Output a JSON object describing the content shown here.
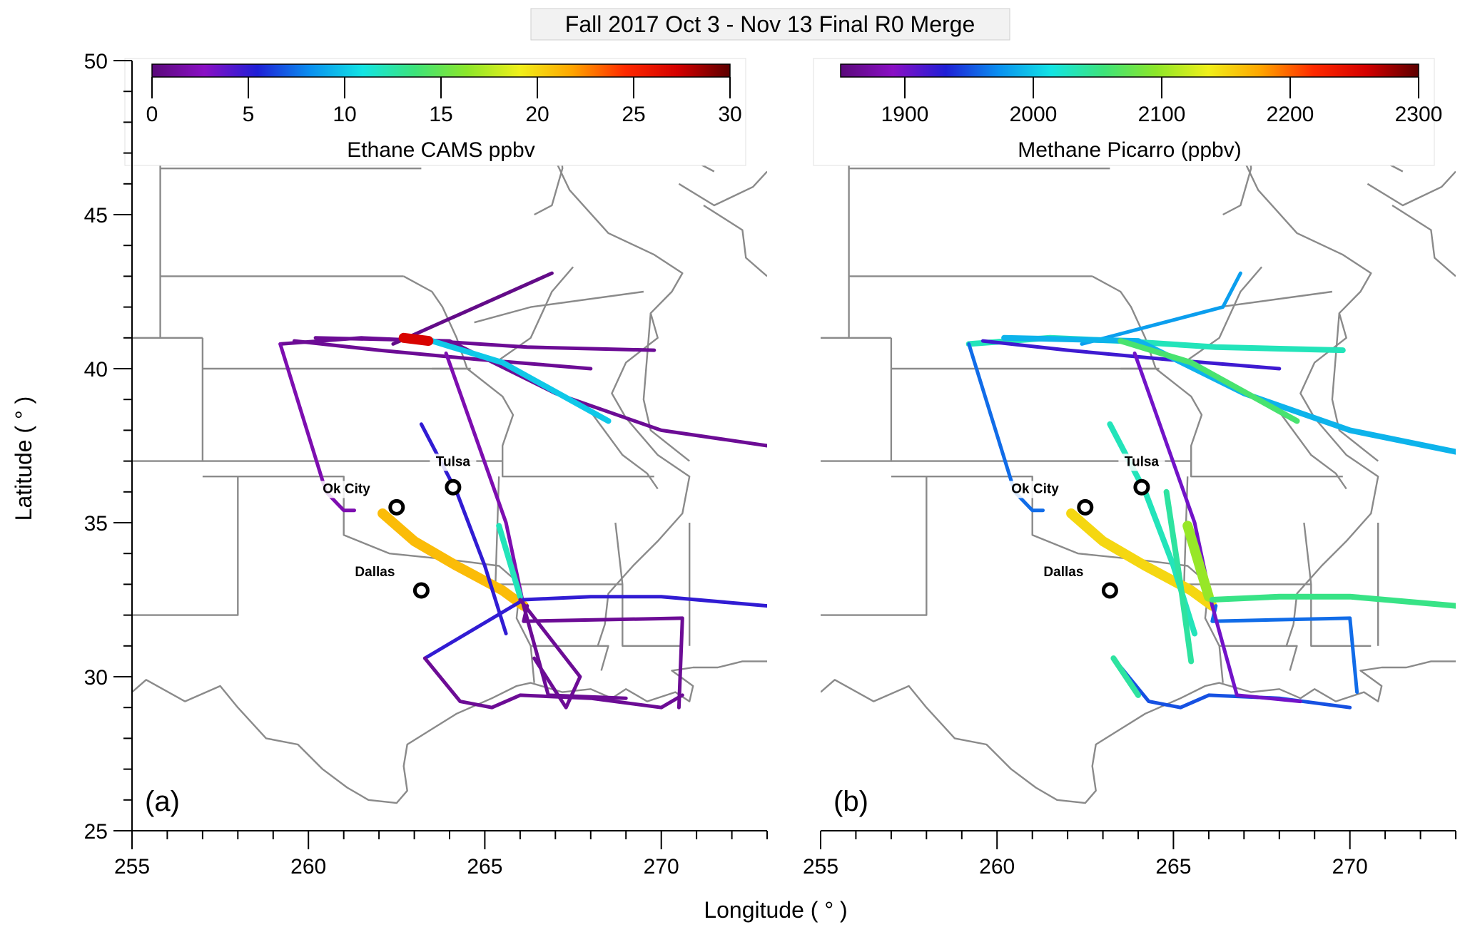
{
  "figure": {
    "title": "Fall 2017 Oct 3 - Nov 13 Final R0 Merge",
    "xlabel": "Longitude ( ° )",
    "ylabel": "Latitude ( ° )"
  },
  "axes": {
    "lon_range": [
      255,
      273
    ],
    "lat_range": [
      25,
      50
    ],
    "x_ticks": [
      255,
      260,
      265,
      270
    ],
    "y_ticks": [
      25,
      30,
      35,
      40,
      45,
      50
    ]
  },
  "panels": [
    {
      "id": "a",
      "label": "(a)",
      "colorbar": {
        "title": "Ethane CAMS ppbv",
        "min": 0,
        "max": 30,
        "ticks": [
          "0",
          "5",
          "10",
          "15",
          "20",
          "25",
          "30"
        ]
      }
    },
    {
      "id": "b",
      "label": "(b)",
      "colorbar": {
        "title": "Methane Picarro (ppbv)",
        "min": 1850,
        "max": 2300,
        "ticks": [
          "1900",
          "2000",
          "2100",
          "2200",
          "2300"
        ]
      }
    }
  ],
  "cities": [
    {
      "name": "Tulsa",
      "lon": 264.1,
      "lat": 36.15
    },
    {
      "name": "Ok City",
      "lon": 262.5,
      "lat": 35.5
    },
    {
      "name": "Dallas",
      "lon": 263.2,
      "lat": 32.8
    }
  ],
  "colormap": [
    "#5a0a7a",
    "#8a0fc4",
    "#1f1fd6",
    "#0a8ff0",
    "#12e4e4",
    "#3de37a",
    "#8ce62a",
    "#f0f01a",
    "#ffa500",
    "#ff2a00",
    "#d40000",
    "#5c0000"
  ],
  "flight_tracks": {
    "a": [
      {
        "points": [
          [
            259.2,
            40.8
          ],
          [
            261.5,
            41.0
          ],
          [
            263.5,
            40.9
          ],
          [
            266.2,
            40.7
          ],
          [
            269.8,
            40.6
          ]
        ],
        "value": 1
      },
      {
        "points": [
          [
            259.2,
            40.8
          ],
          [
            260.5,
            36.0
          ],
          [
            261.0,
            35.4
          ],
          [
            261.3,
            35.4
          ]
        ],
        "value": 2
      },
      {
        "points": [
          [
            259.6,
            40.9
          ],
          [
            262.0,
            40.6
          ],
          [
            264.8,
            40.3
          ],
          [
            268.0,
            40.0
          ]
        ],
        "value": 1
      },
      {
        "points": [
          [
            262.4,
            40.8
          ],
          [
            266.9,
            43.1
          ]
        ],
        "value": 0.5
      },
      {
        "points": [
          [
            260.2,
            41.0
          ],
          [
            264.0,
            40.9
          ],
          [
            267.0,
            39.2
          ],
          [
            270.0,
            38.0
          ],
          [
            273.0,
            37.5
          ]
        ],
        "value": 1
      },
      {
        "points": [
          [
            263.5,
            40.9
          ],
          [
            265.5,
            40.2
          ],
          [
            268.5,
            38.3
          ]
        ],
        "value": 10
      },
      {
        "points": [
          [
            262.7,
            41.0
          ],
          [
            263.4,
            40.9
          ]
        ],
        "value": 27
      },
      {
        "points": [
          [
            262.1,
            35.3
          ],
          [
            263.0,
            34.4
          ],
          [
            264.2,
            33.6
          ],
          [
            265.5,
            32.8
          ],
          [
            266.1,
            32.3
          ]
        ],
        "value": 21
      },
      {
        "points": [
          [
            263.2,
            38.2
          ],
          [
            264.2,
            36.0
          ],
          [
            265.0,
            33.6
          ],
          [
            265.6,
            31.4
          ]
        ],
        "value": 5
      },
      {
        "points": [
          [
            263.9,
            40.5
          ],
          [
            265.6,
            35.0
          ],
          [
            266.1,
            32.3
          ]
        ],
        "value": 2
      },
      {
        "points": [
          [
            265.4,
            34.9
          ],
          [
            266.0,
            32.6
          ]
        ],
        "value": 12
      },
      {
        "points": [
          [
            263.3,
            30.6
          ],
          [
            266.1,
            32.5
          ],
          [
            268.0,
            32.6
          ],
          [
            270.0,
            32.6
          ],
          [
            273.0,
            32.3
          ]
        ],
        "value": 5
      },
      {
        "points": [
          [
            263.3,
            30.6
          ],
          [
            264.3,
            29.2
          ],
          [
            265.2,
            29.0
          ],
          [
            266.0,
            29.4
          ],
          [
            268.0,
            29.3
          ],
          [
            270.0,
            29.0
          ],
          [
            270.6,
            29.4
          ]
        ],
        "value": 1
      },
      {
        "points": [
          [
            266.2,
            32.3
          ],
          [
            266.1,
            31.8
          ],
          [
            270.6,
            31.9
          ],
          [
            270.5,
            29.0
          ]
        ],
        "value": 1
      },
      {
        "points": [
          [
            266.1,
            32.3
          ],
          [
            266.8,
            29.4
          ],
          [
            269.0,
            29.3
          ]
        ],
        "value": 1
      },
      {
        "points": [
          [
            266.0,
            32.5
          ],
          [
            267.7,
            30.0
          ],
          [
            267.3,
            29.0
          ],
          [
            266.4,
            30.6
          ]
        ],
        "value": 1
      }
    ],
    "b": [
      {
        "points": [
          [
            259.2,
            40.8
          ],
          [
            261.5,
            41.0
          ],
          [
            263.5,
            40.9
          ],
          [
            266.2,
            40.7
          ],
          [
            269.8,
            40.6
          ]
        ],
        "value": 2030
      },
      {
        "points": [
          [
            259.2,
            40.8
          ],
          [
            260.5,
            36.0
          ],
          [
            261.0,
            35.4
          ],
          [
            261.3,
            35.4
          ]
        ],
        "value": 1960
      },
      {
        "points": [
          [
            259.6,
            40.9
          ],
          [
            262.0,
            40.6
          ],
          [
            264.8,
            40.3
          ],
          [
            268.0,
            40.0
          ]
        ],
        "value": 1920
      },
      {
        "points": [
          [
            262.4,
            40.8
          ],
          [
            266.4,
            42.0
          ],
          [
            266.9,
            43.1
          ]
        ],
        "value": 1980
      },
      {
        "points": [
          [
            260.2,
            41.0
          ],
          [
            264.0,
            40.9
          ],
          [
            267.0,
            39.2
          ],
          [
            270.0,
            38.0
          ],
          [
            273.0,
            37.3
          ]
        ],
        "value": 1990
      },
      {
        "points": [
          [
            263.5,
            40.9
          ],
          [
            265.5,
            40.2
          ],
          [
            268.5,
            38.3
          ]
        ],
        "value": 2060
      },
      {
        "points": [
          [
            262.1,
            35.3
          ],
          [
            263.0,
            34.4
          ],
          [
            264.2,
            33.6
          ],
          [
            265.5,
            32.8
          ],
          [
            266.1,
            32.3
          ]
        ],
        "value": 2150
      },
      {
        "points": [
          [
            263.2,
            38.2
          ],
          [
            264.2,
            36.0
          ],
          [
            265.0,
            33.6
          ],
          [
            265.6,
            31.4
          ]
        ],
        "value": 2030
      },
      {
        "points": [
          [
            263.9,
            40.5
          ],
          [
            265.6,
            35.0
          ],
          [
            266.1,
            32.3
          ]
        ],
        "value": 1900
      },
      {
        "points": [
          [
            265.4,
            34.9
          ],
          [
            266.0,
            32.6
          ]
        ],
        "value": 2100
      },
      {
        "points": [
          [
            264.8,
            36.0
          ],
          [
            265.2,
            33.0
          ],
          [
            265.5,
            30.5
          ]
        ],
        "value": 2040
      },
      {
        "points": [
          [
            266.1,
            32.5
          ],
          [
            268.0,
            32.6
          ],
          [
            270.0,
            32.6
          ],
          [
            273.0,
            32.3
          ]
        ],
        "value": 2050
      },
      {
        "points": [
          [
            263.3,
            30.6
          ],
          [
            264.3,
            29.2
          ],
          [
            265.2,
            29.0
          ],
          [
            266.0,
            29.4
          ],
          [
            268.0,
            29.3
          ],
          [
            270.0,
            29.0
          ]
        ],
        "value": 1950
      },
      {
        "points": [
          [
            266.2,
            32.3
          ],
          [
            266.1,
            31.8
          ],
          [
            270.0,
            31.9
          ],
          [
            270.2,
            29.5
          ]
        ],
        "value": 1960
      },
      {
        "points": [
          [
            266.1,
            32.3
          ],
          [
            266.8,
            29.4
          ],
          [
            268.6,
            29.2
          ]
        ],
        "value": 1900
      },
      {
        "points": [
          [
            263.3,
            30.6
          ],
          [
            264.0,
            29.4
          ]
        ],
        "value": 2040
      }
    ]
  }
}
